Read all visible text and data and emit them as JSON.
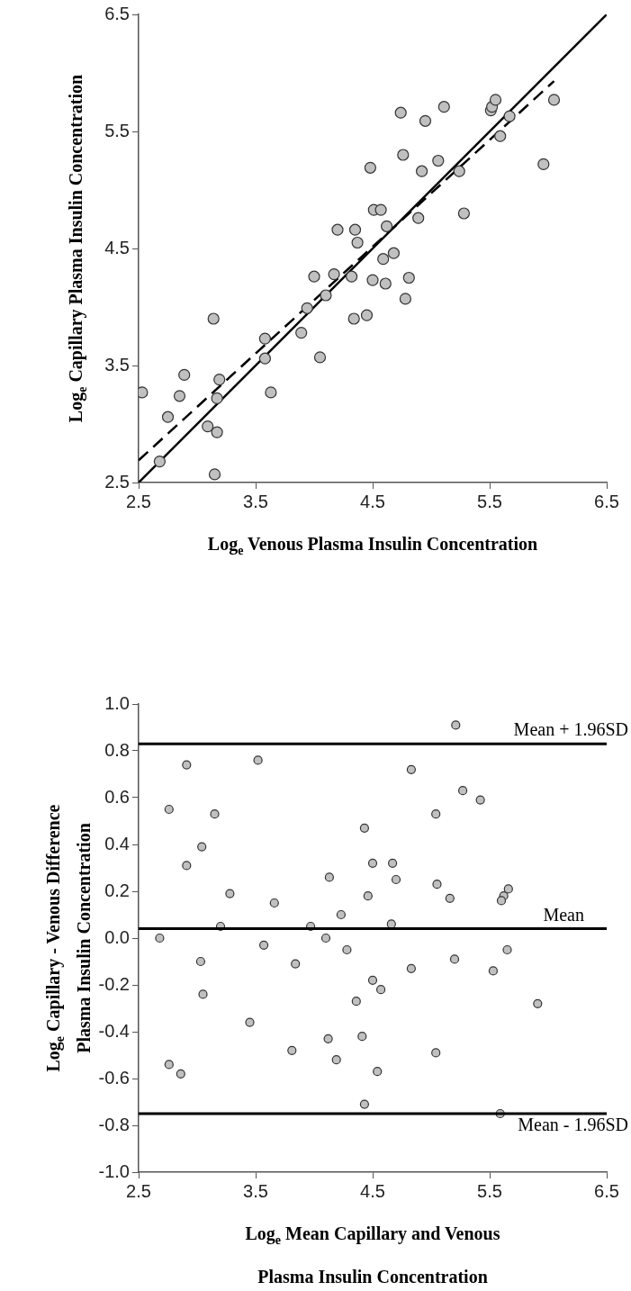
{
  "chart_data": [
    {
      "type": "scatter",
      "xlabel": "Log$_{e}$ Venous Plasma Insulin Concentration",
      "ylabel": "Log$_{e}$ Capillary Plasma Insulin Concentration",
      "xlim": [
        2.5,
        6.5
      ],
      "ylim": [
        2.5,
        6.5
      ],
      "xticks": [
        2.5,
        3.5,
        4.5,
        5.5,
        6.5
      ],
      "yticks": [
        2.5,
        3.5,
        4.5,
        5.5,
        6.5
      ],
      "grid": false,
      "legend": false,
      "series": [
        {
          "type": "scatter",
          "color": "#c0c0c0",
          "marker": "circle",
          "x": [
            2.53,
            2.68,
            2.75,
            2.85,
            2.89,
            3.09,
            3.14,
            3.17,
            3.17,
            3.15,
            3.19,
            3.58,
            3.58,
            3.63,
            3.89,
            3.94,
            4.05,
            4.0,
            4.1,
            4.17,
            4.2,
            4.32,
            4.34,
            4.35,
            4.37,
            4.45,
            4.5,
            4.48,
            4.51,
            4.74,
            4.76,
            4.95,
            5.11,
            4.92,
            5.06,
            5.24,
            5.28,
            4.89,
            4.62,
            4.57,
            4.68,
            4.59,
            4.61,
            4.81,
            4.78,
            5.51,
            5.52,
            5.55,
            5.67,
            5.59,
            5.96,
            6.05
          ],
          "values": [
            3.27,
            2.68,
            3.06,
            3.24,
            3.42,
            2.98,
            3.9,
            3.22,
            2.93,
            2.57,
            3.38,
            3.73,
            3.56,
            3.27,
            3.78,
            3.99,
            3.57,
            4.26,
            4.1,
            4.28,
            4.66,
            4.26,
            3.9,
            4.66,
            4.55,
            3.93,
            4.23,
            5.19,
            4.83,
            5.66,
            5.3,
            5.59,
            5.71,
            5.16,
            5.25,
            5.16,
            4.8,
            4.76,
            4.69,
            4.83,
            4.46,
            4.41,
            4.2,
            4.25,
            4.07,
            5.68,
            5.71,
            5.77,
            5.63,
            5.46,
            5.22,
            5.77
          ]
        },
        {
          "type": "line",
          "color": "#000000",
          "line_style": "solid",
          "x": [
            2.5,
            6.5
          ],
          "values": [
            2.5,
            6.5
          ]
        },
        {
          "type": "line",
          "color": "#000000",
          "line_style": "dashed",
          "x": [
            2.5,
            6.05
          ],
          "values": [
            2.69,
            5.93
          ]
        }
      ]
    },
    {
      "type": "scatter",
      "xlabel": "Log$_{e}$ Mean Capillary and Venous\nPlasma Insulin Concentration",
      "ylabel": "Log$_{e}$ Capillary - Venous Difference\nPlasma Insulin Concentration",
      "xlim": [
        2.5,
        6.5
      ],
      "ylim": [
        -1.0,
        1.0
      ],
      "xticks": [
        2.5,
        3.5,
        4.5,
        5.5,
        6.5
      ],
      "yticks": [
        {
          "value": -1.0,
          "label": "-1.0"
        },
        -0.8,
        -0.6,
        -0.4,
        -0.2,
        {
          "value": 0,
          "label": "0.0"
        },
        0.2,
        0.4,
        0.6,
        0.8,
        {
          "value": 1.0,
          "label": "1.0"
        }
      ],
      "grid": false,
      "legend": false,
      "ref_lines": [
        {
          "axis": "y",
          "value": 0.83,
          "label": "Mean + 1.96SD",
          "color": "#000000"
        },
        {
          "axis": "y",
          "value": 0.04,
          "label": "Mean",
          "color": "#000000"
        },
        {
          "axis": "y",
          "value": -0.75,
          "label": "Mean - 1.96SD",
          "color": "#000000"
        }
      ],
      "series": [
        {
          "type": "scatter",
          "color": "#c0c0c0",
          "marker": "circle",
          "x": [
            2.68,
            2.76,
            2.91,
            2.91,
            3.04,
            3.15,
            3.28,
            3.2,
            3.52,
            3.66,
            3.57,
            3.97,
            4.1,
            4.13,
            4.23,
            4.28,
            4.43,
            4.46,
            4.5,
            3.03,
            3.05,
            2.76,
            2.86,
            3.45,
            3.84,
            3.81,
            4.12,
            4.19,
            4.36,
            4.41,
            4.43,
            4.5,
            4.54,
            5.21,
            4.83,
            5.27,
            5.42,
            5.04,
            4.67,
            4.7,
            5.05,
            5.16,
            5.66,
            5.62,
            5.6,
            4.66,
            5.65,
            4.57,
            4.83,
            5.2,
            5.53,
            5.91,
            5.04,
            5.59
          ],
          "values": [
            0.0,
            0.55,
            0.74,
            0.31,
            0.39,
            0.53,
            0.19,
            0.05,
            0.76,
            0.15,
            -0.03,
            0.05,
            0.0,
            0.26,
            0.1,
            -0.05,
            0.47,
            0.18,
            0.32,
            -0.1,
            -0.24,
            -0.54,
            -0.58,
            -0.36,
            -0.11,
            -0.48,
            -0.43,
            -0.52,
            -0.27,
            -0.42,
            -0.71,
            -0.18,
            -0.57,
            0.91,
            0.72,
            0.63,
            0.59,
            0.53,
            0.32,
            0.25,
            0.23,
            0.17,
            0.21,
            0.18,
            0.16,
            0.06,
            -0.05,
            -0.22,
            -0.13,
            -0.09,
            -0.14,
            -0.28,
            -0.49,
            -0.75
          ]
        }
      ]
    }
  ]
}
